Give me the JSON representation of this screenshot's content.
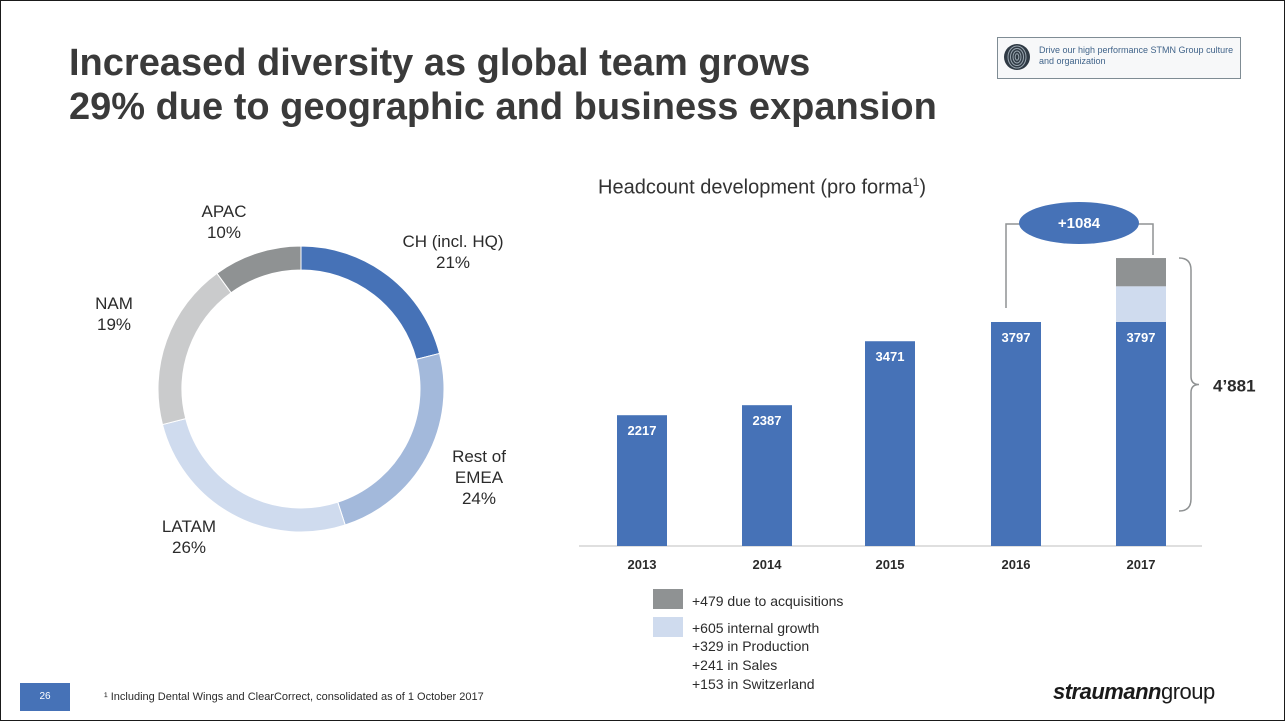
{
  "slide": {
    "title_line1": "Increased diversity as global team grows",
    "title_line2": "29% due to geographic and business expansion",
    "badge_text": "Drive our high performance STMN Group culture and organization",
    "footnote": "¹ Including Dental Wings and ClearCorrect, consolidated as of 1 October 2017",
    "page_number": "26",
    "brand_bold": "straumann",
    "brand_light": "group"
  },
  "colors": {
    "blue": "#4672b7",
    "light_blue": "#a3b9db",
    "pale_blue": "#cfdbee",
    "light_gray": "#cacbcc",
    "gray": "#8f9293",
    "bubble": "#4672b7"
  },
  "chart_data": [
    {
      "type": "pie",
      "donut": true,
      "slices": [
        {
          "label_line1": "CH (incl. HQ)",
          "label_line2": "",
          "pct_label": "21%",
          "value": 21,
          "color": "#4672b7"
        },
        {
          "label_line1": "Rest of",
          "label_line2": "EMEA",
          "pct_label": "24%",
          "value": 24,
          "color": "#a3b9db"
        },
        {
          "label_line1": "LATAM",
          "label_line2": "",
          "pct_label": "26%",
          "value": 26,
          "color": "#cfdbee"
        },
        {
          "label_line1": "NAM",
          "label_line2": "",
          "pct_label": "19%",
          "value": 19,
          "color": "#cacbcc"
        },
        {
          "label_line1": "APAC",
          "label_line2": "",
          "pct_label": "10%",
          "value": 10,
          "color": "#8f9293"
        }
      ]
    },
    {
      "type": "bar",
      "title": "Headcount development (pro forma",
      "title_sup": "1",
      "categories": [
        "2013",
        "2014",
        "2015",
        "2016",
        "2017"
      ],
      "values": [
        2217,
        2387,
        3471,
        3797,
        3797
      ],
      "value_labels": [
        "2217",
        "2387",
        "3471",
        "3797",
        "3797"
      ],
      "stack_2017": [
        {
          "name": "+605 internal growth",
          "value": 605,
          "color": "#cfdbee"
        },
        {
          "name": "+479 due to acquisitions",
          "value": 479,
          "color": "#8f9293"
        }
      ],
      "increase_label": "+1084",
      "total_label": "4’881",
      "total_value": 4881,
      "legend": [
        {
          "color": "#8f9293",
          "lines": [
            "+479 due to acquisitions"
          ]
        },
        {
          "color": "#cfdbee",
          "lines": [
            "+605 internal growth",
            "+329 in Production",
            "+241 in Sales",
            "+153 in Switzerland"
          ]
        }
      ]
    }
  ]
}
